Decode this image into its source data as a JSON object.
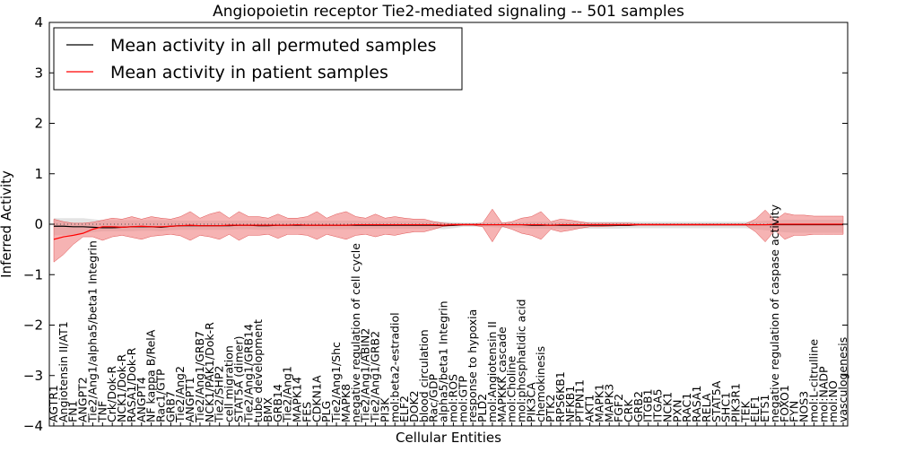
{
  "chart_data": {
    "type": "line",
    "title": "Angiopoietin receptor Tie2-mediated signaling -- 501 samples",
    "xlabel": "Cellular Entities",
    "ylabel": "Inferred Activity",
    "ylim": [
      -4,
      4
    ],
    "yticks": [
      -4,
      -3,
      -2,
      -1,
      0,
      1,
      2,
      3,
      4
    ],
    "ytick_labels": [
      "−4",
      "−3",
      "−2",
      "−1",
      "0",
      "1",
      "2",
      "3",
      "4"
    ],
    "legend": {
      "placement": "top-left",
      "entries": [
        {
          "label": "Mean activity in all permuted samples",
          "color": "#000000"
        },
        {
          "label": "Mean activity in patient samples",
          "color": "#ff0000"
        }
      ]
    },
    "categories": [
      "AGTR1",
      "Angiotensin II/AT1",
      "FN1",
      "ANGPT2",
      "Tie2/Ang1/alpha5/beta1 Integrin",
      "TNF",
      "Crk/Dok-R",
      "NCK1/Dok-R",
      "RASA1/Dok-R",
      "ANGPT4",
      "NF kappa B/RelA",
      "Rac1/GTP",
      "GRB7",
      "Tie2/Ang2",
      "ANGPT1",
      "Tie2/Ang1/GRB7",
      "NCK1/PAK1/Dok-R",
      "Tie2/SHP2",
      "cell migration",
      "STAT5A (dimer)",
      "Tie2/Ang1/GRB14",
      "tube development",
      "BMX",
      "GRB14",
      "Tie2/Ang1",
      "MAPK14",
      "FES",
      "CDKN1A",
      "PLG",
      "Tie2/Ang1/Shc",
      "MAPK8",
      "negative regulation of cell cycle",
      "Tie2/Ang1/ABIN2",
      "Tie2/Ang1/GRB2",
      "PI3K",
      "mol:beta2-estradiol",
      "ELF2",
      "DOK2",
      "blood circulation",
      "Rac/GDP",
      "alpha5/beta1 Integrin",
      "mol:ROS",
      "mol:GTP",
      "response to hypoxia",
      "PLD2",
      "mol:Angiotensin II",
      "MAPKKK cascade",
      "mol:Choline",
      "mol:phosphatidic acid",
      "PIK3CA",
      "chemokinesis",
      "PTK2",
      "RPS6KB1",
      "NFKB1",
      "PTPN11",
      "AKT1",
      "MAPK1",
      "MAPK3",
      "FGF2",
      "CRK",
      "GRB2",
      "ITGB1",
      "ITGA5",
      "NCK1",
      "PXN",
      "RAC1",
      "RASA1",
      "RELA",
      "STAT5A",
      "SHC1",
      "PIK3R1",
      "TEK",
      "ELF1",
      "ETS1",
      "negative regulation of caspase activity",
      "FOXO1",
      "FYN",
      "NOS3",
      "mol:L-citrulline",
      "mol:NADP",
      "mol:NO",
      "vasculogenesis"
    ],
    "series": [
      {
        "name": "Mean activity in all permuted samples",
        "color": "#000000",
        "values": [
          -0.04,
          -0.04,
          -0.05,
          -0.05,
          -0.06,
          -0.07,
          -0.07,
          -0.06,
          -0.05,
          -0.05,
          -0.05,
          -0.06,
          -0.04,
          -0.03,
          -0.03,
          -0.03,
          -0.03,
          -0.03,
          -0.03,
          -0.02,
          -0.02,
          -0.03,
          -0.03,
          -0.02,
          -0.02,
          -0.02,
          -0.02,
          -0.02,
          -0.02,
          -0.02,
          -0.02,
          -0.02,
          -0.02,
          -0.02,
          -0.02,
          -0.02,
          -0.02,
          -0.02,
          -0.02,
          -0.02,
          -0.03,
          -0.02,
          -0.01,
          -0.01,
          -0.01,
          -0.01,
          -0.01,
          -0.01,
          -0.01,
          -0.02,
          -0.02,
          -0.02,
          -0.02,
          -0.02,
          -0.02,
          -0.02,
          -0.02,
          -0.02,
          -0.02,
          -0.02,
          -0.01,
          -0.01,
          -0.01,
          -0.01,
          -0.01,
          -0.01,
          -0.01,
          -0.01,
          -0.01,
          -0.01,
          -0.01,
          -0.01,
          -0.01,
          -0.01,
          -0.01,
          -0.01,
          -0.01,
          -0.01,
          -0.01,
          -0.01,
          -0.01,
          -0.01
        ]
      },
      {
        "name": "Mean activity in patient samples",
        "color": "#ff0000",
        "values": [
          -0.3,
          -0.25,
          -0.22,
          -0.18,
          -0.1,
          -0.05,
          -0.05,
          -0.06,
          -0.05,
          -0.04,
          -0.05,
          -0.05,
          -0.04,
          -0.03,
          -0.02,
          -0.03,
          -0.03,
          -0.03,
          -0.02,
          -0.02,
          -0.02,
          -0.02,
          -0.02,
          -0.02,
          -0.02,
          -0.01,
          -0.02,
          -0.02,
          -0.02,
          -0.02,
          -0.02,
          -0.01,
          -0.01,
          -0.01,
          -0.01,
          -0.01,
          -0.01,
          -0.01,
          -0.01,
          -0.01,
          -0.02,
          -0.01,
          -0.01,
          -0.01,
          -0.01,
          -0.01,
          -0.01,
          -0.01,
          -0.01,
          -0.01,
          -0.01,
          -0.02,
          -0.01,
          -0.01,
          -0.01,
          -0.01,
          -0.01,
          -0.01,
          -0.01,
          -0.01,
          -0.01,
          -0.01,
          -0.01,
          -0.01,
          -0.01,
          -0.01,
          -0.01,
          -0.01,
          -0.01,
          -0.01,
          -0.01,
          -0.01,
          -0.01,
          -0.01,
          0.0,
          0.0,
          0.0,
          0.0,
          0.0,
          0.0,
          0.0,
          0.0
        ]
      }
    ],
    "permuted_band": {
      "lower": [
        -0.22,
        -0.22,
        -0.2,
        -0.18,
        -0.16,
        -0.14,
        -0.14,
        -0.14,
        -0.14,
        -0.13,
        -0.13,
        -0.14,
        -0.12,
        -0.11,
        -0.11,
        -0.11,
        -0.11,
        -0.11,
        -0.11,
        -0.1,
        -0.1,
        -0.11,
        -0.11,
        -0.1,
        -0.1,
        -0.1,
        -0.1,
        -0.1,
        -0.1,
        -0.1,
        -0.1,
        -0.1,
        -0.09,
        -0.09,
        -0.09,
        -0.09,
        -0.09,
        -0.09,
        -0.09,
        -0.09,
        -0.1,
        -0.08,
        -0.05,
        -0.05,
        -0.05,
        -0.06,
        -0.07,
        -0.07,
        -0.07,
        -0.09,
        -0.09,
        -0.09,
        -0.09,
        -0.09,
        -0.09,
        -0.09,
        -0.09,
        -0.09,
        -0.09,
        -0.08,
        -0.08,
        -0.08,
        -0.08,
        -0.08,
        -0.08,
        -0.08,
        -0.08,
        -0.08,
        -0.08,
        -0.08,
        -0.08,
        -0.08,
        -0.1,
        -0.12,
        -0.14,
        -0.16,
        -0.17,
        -0.17,
        -0.17,
        -0.17,
        -0.17,
        -0.17
      ],
      "upper": [
        0.12,
        0.12,
        0.12,
        0.12,
        0.1,
        0.08,
        0.08,
        0.08,
        0.08,
        0.08,
        0.08,
        0.08,
        0.08,
        0.07,
        0.07,
        0.07,
        0.07,
        0.07,
        0.07,
        0.07,
        0.07,
        0.07,
        0.07,
        0.07,
        0.07,
        0.07,
        0.07,
        0.07,
        0.07,
        0.07,
        0.07,
        0.07,
        0.06,
        0.06,
        0.06,
        0.06,
        0.06,
        0.06,
        0.06,
        0.06,
        0.05,
        0.04,
        0.03,
        0.03,
        0.03,
        0.04,
        0.04,
        0.04,
        0.04,
        0.05,
        0.05,
        0.05,
        0.05,
        0.05,
        0.05,
        0.05,
        0.05,
        0.05,
        0.05,
        0.05,
        0.05,
        0.05,
        0.05,
        0.05,
        0.05,
        0.05,
        0.05,
        0.05,
        0.05,
        0.05,
        0.05,
        0.05,
        0.06,
        0.07,
        0.08,
        0.09,
        0.09,
        0.09,
        0.09,
        0.09,
        0.09,
        0.09
      ]
    },
    "patient_band": {
      "lower": [
        -0.75,
        -0.6,
        -0.4,
        -0.25,
        -0.25,
        -0.32,
        -0.25,
        -0.22,
        -0.26,
        -0.3,
        -0.24,
        -0.22,
        -0.2,
        -0.23,
        -0.32,
        -0.22,
        -0.25,
        -0.3,
        -0.2,
        -0.32,
        -0.22,
        -0.22,
        -0.2,
        -0.28,
        -0.2,
        -0.2,
        -0.22,
        -0.3,
        -0.2,
        -0.25,
        -0.3,
        -0.22,
        -0.2,
        -0.25,
        -0.2,
        -0.22,
        -0.18,
        -0.15,
        -0.15,
        -0.1,
        -0.04,
        -0.03,
        -0.02,
        -0.02,
        -0.05,
        -0.35,
        -0.04,
        -0.1,
        -0.18,
        -0.22,
        -0.3,
        -0.1,
        -0.15,
        -0.12,
        -0.08,
        -0.05,
        -0.05,
        -0.04,
        -0.03,
        -0.03,
        -0.02,
        -0.02,
        -0.02,
        -0.02,
        -0.02,
        -0.02,
        -0.02,
        -0.02,
        -0.02,
        -0.02,
        -0.02,
        -0.02,
        -0.15,
        -0.35,
        -0.12,
        -0.3,
        -0.22,
        -0.22,
        -0.2,
        -0.2,
        -0.2,
        -0.2
      ],
      "upper": [
        0.1,
        0.05,
        0.02,
        0.02,
        0.04,
        0.08,
        0.12,
        0.1,
        0.15,
        0.1,
        0.15,
        0.12,
        0.1,
        0.15,
        0.25,
        0.12,
        0.2,
        0.25,
        0.12,
        0.25,
        0.15,
        0.15,
        0.12,
        0.2,
        0.12,
        0.12,
        0.15,
        0.25,
        0.12,
        0.2,
        0.25,
        0.15,
        0.12,
        0.2,
        0.12,
        0.15,
        0.12,
        0.1,
        0.1,
        0.05,
        0.02,
        0.01,
        0.01,
        0.01,
        0.02,
        0.3,
        0.02,
        0.05,
        0.12,
        0.15,
        0.25,
        0.05,
        0.1,
        0.08,
        0.05,
        0.02,
        0.02,
        0.02,
        0.02,
        0.02,
        0.01,
        0.01,
        0.01,
        0.01,
        0.01,
        0.01,
        0.01,
        0.01,
        0.01,
        0.01,
        0.01,
        0.01,
        0.1,
        0.28,
        0.08,
        0.22,
        0.18,
        0.18,
        0.16,
        0.16,
        0.16,
        0.16
      ]
    },
    "zero_line": "dotted",
    "grid": false
  }
}
